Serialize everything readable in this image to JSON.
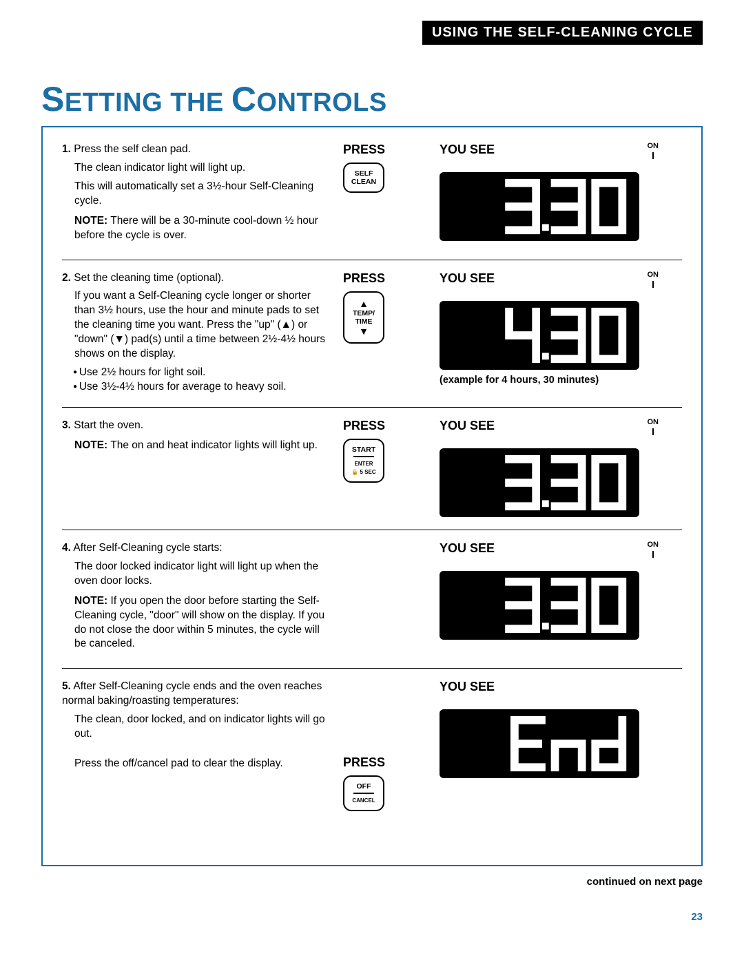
{
  "header": "USING THE SELF-CLEANING CYCLE",
  "title_color": "#1a6fa6",
  "title_html": "S|ETTING THE|C|ONTROLS",
  "steps": [
    {
      "num": "1.",
      "lines": [
        "Press the self clean pad.",
        "The clean indicator light will light up.",
        "This will automatically set a 3½-hour Self-Cleaning cycle."
      ],
      "note": "There will be a 30-minute cool-down ½ hour before the cycle is over.",
      "press": "PRESS",
      "pad": {
        "type": "selfclean",
        "l1": "SELF",
        "l2": "CLEAN"
      },
      "yousee": "YOU SEE",
      "on": true,
      "display": "3.30"
    },
    {
      "num": "2.",
      "lines": [
        "Set the cleaning time (optional).",
        "If you want a Self-Cleaning cycle longer or shorter than 3½ hours, use the hour and minute pads to set the cleaning time you want. Press the \"up\" (▲) or \"down\" (▼) pad(s) until a time between 2½-4½ hours shows on the display."
      ],
      "bullets": [
        "Use 2½ hours for light soil.",
        "Use 3½-4½ hours for average to heavy soil."
      ],
      "press": "PRESS",
      "pad": {
        "type": "temptime",
        "l1": "TEMP/",
        "l2": "TIME"
      },
      "yousee": "YOU SEE",
      "on": true,
      "display": "4.30",
      "caption": "(example for 4 hours, 30 minutes)"
    },
    {
      "num": "3.",
      "lines": [
        "Start the oven."
      ],
      "note": "The on and heat indicator lights will light up.",
      "press": "PRESS",
      "pad": {
        "type": "start",
        "l1": "START",
        "l2": "ENTER",
        "l3": "🔒 5 SEC"
      },
      "yousee": "YOU SEE",
      "on": true,
      "display": "3.30"
    },
    {
      "num": "4.",
      "lines": [
        "After Self-Cleaning cycle starts:",
        "The door locked indicator light will light up when the oven door locks."
      ],
      "note": "If you open the door before starting the Self-Cleaning cycle, \"door\" will show on the display. If you do not close the door within 5 minutes, the cycle will be canceled.",
      "yousee": "YOU SEE",
      "on": true,
      "display": "3.30"
    },
    {
      "num": "5.",
      "lines": [
        "After Self-Cleaning cycle ends and the oven reaches normal baking/roasting temperatures:",
        "The clean, door locked, and on indicator lights will go out."
      ],
      "extra_line": "Press the off/cancel pad to clear the display.",
      "press": "PRESS",
      "pad": {
        "type": "offcancel",
        "l1": "OFF",
        "l2": "CANCEL"
      },
      "yousee": "YOU SEE",
      "on": false,
      "display": "End"
    }
  ],
  "footer": "continued on next page",
  "page_num": "23"
}
